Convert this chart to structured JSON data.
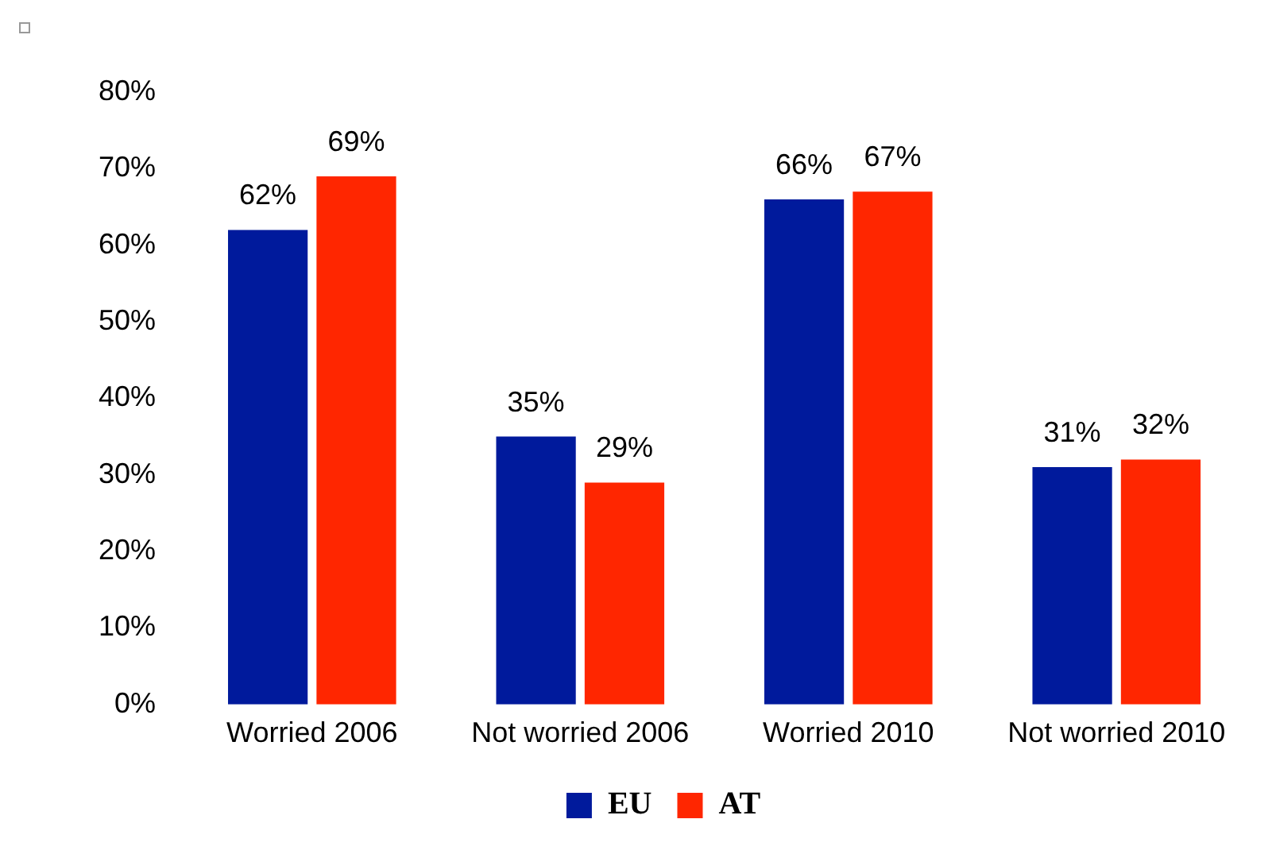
{
  "chart_data": {
    "type": "bar",
    "categories": [
      "Worried 2006",
      "Not worried 2006",
      "Worried 2010",
      "Not worried 2010"
    ],
    "series": [
      {
        "name": "EU",
        "color": "#001a9c",
        "values": [
          62,
          35,
          66,
          31
        ],
        "value_labels": [
          "62%",
          "35%",
          "66%",
          "31%"
        ]
      },
      {
        "name": "AT",
        "color": "#ff2600",
        "values": [
          69,
          29,
          67,
          32
        ],
        "value_labels": [
          "69%",
          "29%",
          "67%",
          "32%"
        ]
      }
    ],
    "ylim": [
      0,
      80
    ],
    "yticks": [
      {
        "value": 0,
        "label": "0%"
      },
      {
        "value": 10,
        "label": "10%"
      },
      {
        "value": 20,
        "label": "20%"
      },
      {
        "value": 30,
        "label": "30%"
      },
      {
        "value": 40,
        "label": "40%"
      },
      {
        "value": 50,
        "label": "50%"
      },
      {
        "value": 60,
        "label": "60%"
      },
      {
        "value": 70,
        "label": "70%"
      },
      {
        "value": 80,
        "label": "80%"
      }
    ],
    "grid": false,
    "legend": "bottom"
  }
}
